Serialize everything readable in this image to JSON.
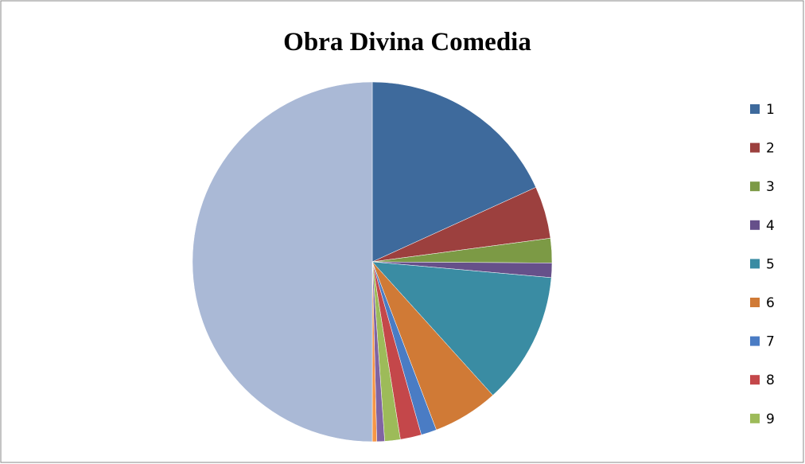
{
  "chart_data": {
    "type": "pie",
    "title": "Obra Divina Comedia",
    "categories": [
      "1",
      "2",
      "3",
      "4",
      "5",
      "6",
      "7",
      "8",
      "9",
      null,
      null,
      null
    ],
    "values": [
      18.2,
      4.7,
      2.2,
      1.3,
      11.9,
      5.9,
      1.4,
      1.9,
      1.4,
      0.7,
      0.4,
      50
    ],
    "colors": [
      "#3e6a9c",
      "#9c403e",
      "#7c9a45",
      "#66508a",
      "#3a8ca3",
      "#d07a36",
      "#4a7cc4",
      "#c4474a",
      "#9dbb59",
      "#8064a2",
      "#f79646",
      "#aab9d6"
    ],
    "legend": "right"
  }
}
